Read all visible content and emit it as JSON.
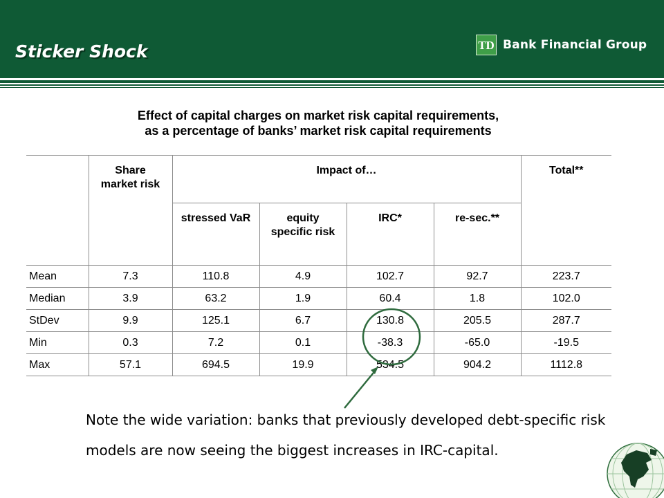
{
  "slide": {
    "title": "Sticker Shock",
    "logo": {
      "mark_text": "TD",
      "name": "Bank Financial Group"
    },
    "table_title": [
      "Effect of capital charges on market risk capital requirements,",
      "as a percentage of banks’ market risk capital requirements"
    ],
    "table": {
      "header": {
        "share": [
          "Share",
          "market risk"
        ],
        "impact": "Impact of…",
        "total": "Total**",
        "sub": [
          [
            "stressed VaR"
          ],
          [
            "equity",
            "specific risk"
          ],
          [
            "IRC*"
          ],
          [
            "re-sec.**"
          ]
        ]
      },
      "rows": [
        {
          "label": "Mean",
          "values": [
            "7.3",
            "110.8",
            "4.9",
            "102.7",
            "92.7",
            "223.7"
          ]
        },
        {
          "label": "Median",
          "values": [
            "3.9",
            "63.2",
            "1.9",
            "60.4",
            "1.8",
            "102.0"
          ]
        },
        {
          "label": "StDev",
          "values": [
            "9.9",
            "125.1",
            "6.7",
            "130.8",
            "205.5",
            "287.7"
          ]
        },
        {
          "label": "Min",
          "values": [
            "0.3",
            "7.2",
            "0.1",
            "-38.3",
            "-65.0",
            "-19.5"
          ]
        },
        {
          "label": "Max",
          "values": [
            "57.1",
            "694.5",
            "19.9",
            "534.5",
            "904.2",
            "1112.8"
          ]
        }
      ]
    },
    "note": "Note the wide variation: banks that previously developed debt-specific risk models are now seeing the biggest increases in IRC-capital.",
    "colors": {
      "header_green": "#0f5a35",
      "logo_green": "#3f9e48",
      "annotation_green": "#2f6b3e"
    },
    "icons": [
      "td-logo-icon",
      "globe-icon"
    ]
  }
}
